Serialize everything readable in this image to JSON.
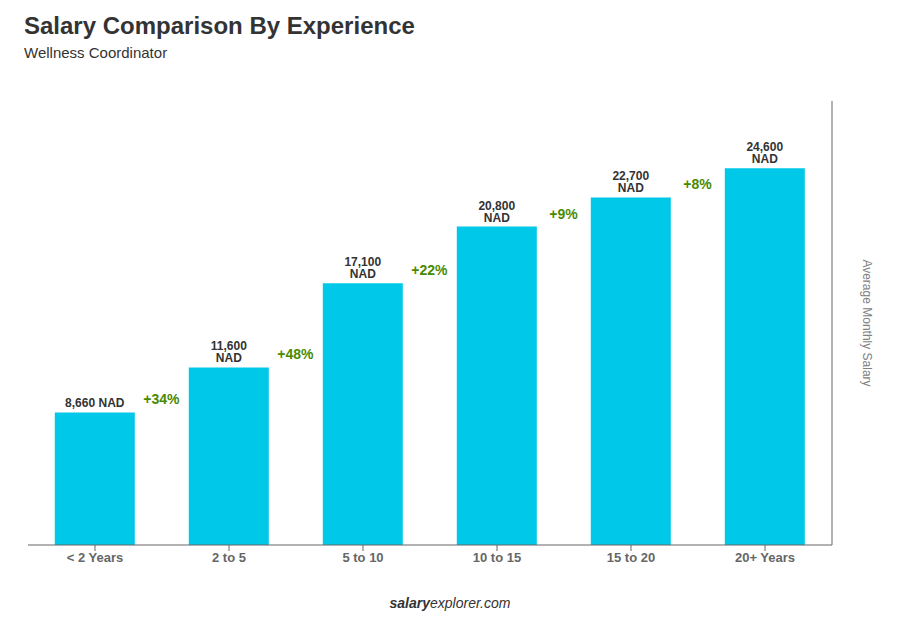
{
  "chart_data": {
    "type": "bar",
    "title": "Salary Comparison By Experience",
    "subtitle": "Wellness Coordinator",
    "ylabel": "Average Monthly Salary",
    "categories": [
      "< 2 Years",
      "2 to 5",
      "5 to 10",
      "10 to 15",
      "15 to 20",
      "20+ Years"
    ],
    "values": [
      8660,
      11600,
      17100,
      20800,
      22700,
      24600
    ],
    "value_labels": [
      "8,660 NAD",
      "11,600 NAD",
      "17,100 NAD",
      "20,800 NAD",
      "22,700 NAD",
      "24,600 NAD"
    ],
    "data_labels": true,
    "annotations": [
      "+34%",
      "+48%",
      "+22%",
      "+9%",
      "+8%"
    ],
    "footer": [
      "salary",
      "explorer.com"
    ],
    "color": "#00c8e8",
    "ylim": [
      0,
      29000
    ],
    "tick_labels": "x",
    "grid": false
  }
}
